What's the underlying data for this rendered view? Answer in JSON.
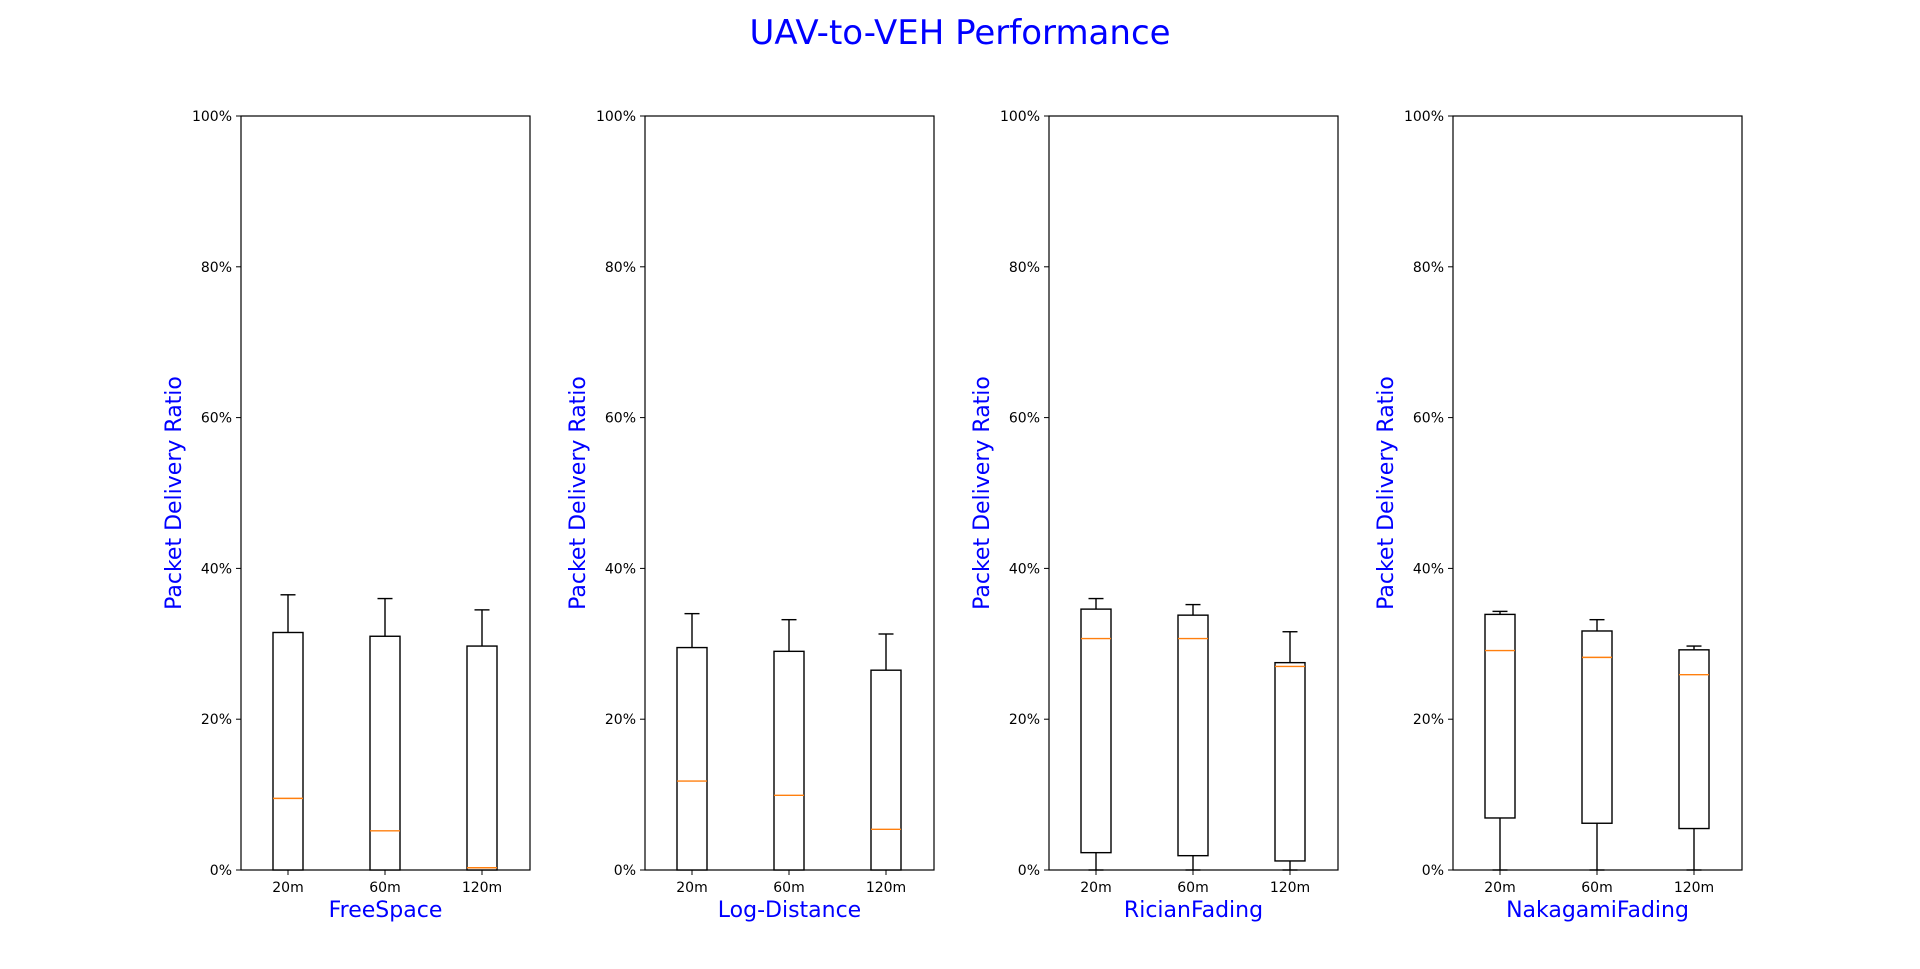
{
  "figure": {
    "title": "UAV-to-VEH Performance",
    "title_color": "#0000ff",
    "label_color": "#0000ff",
    "median_color": "#ff7f0e",
    "box_color": "#000000"
  },
  "chart_data": [
    {
      "type": "box",
      "xlabel": "FreeSpace",
      "ylabel": "Packet Delivery Ratio",
      "ylim": [
        0,
        100
      ],
      "yticks": [
        "0%",
        "20%",
        "40%",
        "60%",
        "80%",
        "100%"
      ],
      "categories": [
        "20m",
        "60m",
        "120m"
      ],
      "boxes": [
        {
          "whisker_low": 0,
          "q1": 0,
          "median": 9.5,
          "q3": 31.5,
          "whisker_high": 36.5
        },
        {
          "whisker_low": 0,
          "q1": 0,
          "median": 5.2,
          "q3": 31.0,
          "whisker_high": 36.0
        },
        {
          "whisker_low": 0,
          "q1": 0,
          "median": 0.3,
          "q3": 29.7,
          "whisker_high": 34.5
        }
      ]
    },
    {
      "type": "box",
      "xlabel": "Log-Distance",
      "ylabel": "Packet Delivery Ratio",
      "ylim": [
        0,
        100
      ],
      "yticks": [
        "0%",
        "20%",
        "40%",
        "60%",
        "80%",
        "100%"
      ],
      "categories": [
        "20m",
        "60m",
        "120m"
      ],
      "boxes": [
        {
          "whisker_low": 0,
          "q1": 0,
          "median": 11.8,
          "q3": 29.5,
          "whisker_high": 34.0
        },
        {
          "whisker_low": 0,
          "q1": 0,
          "median": 9.9,
          "q3": 29.0,
          "whisker_high": 33.2
        },
        {
          "whisker_low": 0,
          "q1": 0,
          "median": 5.4,
          "q3": 26.5,
          "whisker_high": 31.3
        }
      ]
    },
    {
      "type": "box",
      "xlabel": "RicianFading",
      "ylabel": "Packet Delivery Ratio",
      "ylim": [
        0,
        100
      ],
      "yticks": [
        "0%",
        "20%",
        "40%",
        "60%",
        "80%",
        "100%"
      ],
      "categories": [
        "20m",
        "60m",
        "120m"
      ],
      "boxes": [
        {
          "whisker_low": 0,
          "q1": 2.3,
          "median": 30.7,
          "q3": 34.6,
          "whisker_high": 36.0
        },
        {
          "whisker_low": 0,
          "q1": 1.9,
          "median": 30.7,
          "q3": 33.8,
          "whisker_high": 35.2
        },
        {
          "whisker_low": 0,
          "q1": 1.2,
          "median": 27.0,
          "q3": 27.5,
          "whisker_high": 31.6
        }
      ]
    },
    {
      "type": "box",
      "xlabel": "NakagamiFading",
      "ylabel": "Packet Delivery Ratio",
      "ylim": [
        0,
        100
      ],
      "yticks": [
        "0%",
        "20%",
        "40%",
        "60%",
        "80%",
        "100%"
      ],
      "categories": [
        "20m",
        "60m",
        "120m"
      ],
      "boxes": [
        {
          "whisker_low": 0,
          "q1": 6.9,
          "median": 29.1,
          "q3": 33.9,
          "whisker_high": 34.3
        },
        {
          "whisker_low": 0,
          "q1": 6.2,
          "median": 28.2,
          "q3": 31.7,
          "whisker_high": 33.2
        },
        {
          "whisker_low": 0,
          "q1": 5.5,
          "median": 25.9,
          "q3": 29.2,
          "whisker_high": 29.7
        }
      ]
    }
  ]
}
